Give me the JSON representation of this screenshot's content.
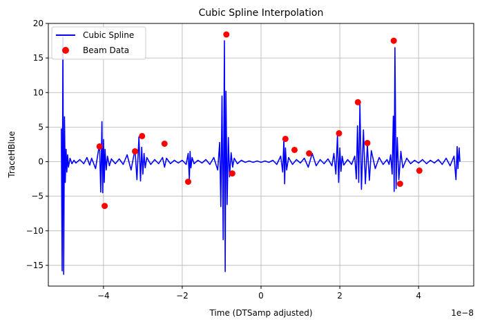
{
  "chart_data": {
    "type": "line",
    "title": "Cubic Spline Interpolation",
    "xlabel": "Time (DTSamp adjusted)",
    "ylabel": "TraceHBlue",
    "x_offset_label": "1e−8",
    "xlim": [
      -5.4,
      5.4
    ],
    "ylim": [
      -18,
      20
    ],
    "xticks": [
      -4,
      -2,
      0,
      2,
      4
    ],
    "xtick_labels": [
      "−4",
      "−2",
      "0",
      "2",
      "4"
    ],
    "yticks": [
      -15,
      -10,
      -5,
      0,
      5,
      10,
      15,
      20
    ],
    "ytick_labels": [
      "−15",
      "−10",
      "−5",
      "0",
      "5",
      "10",
      "15",
      "20"
    ],
    "grid": true,
    "legend_position": "top-left",
    "series": [
      {
        "name": "Cubic Spline",
        "kind": "line",
        "color": "#0000ff",
        "x": [
          -5.07,
          -5.05,
          -5.03,
          -5.01,
          -4.99,
          -4.97,
          -4.95,
          -4.93,
          -4.91,
          -4.89,
          -4.85,
          -4.8,
          -4.75,
          -4.7,
          -4.6,
          -4.5,
          -4.42,
          -4.35,
          -4.3,
          -4.2,
          -4.1,
          -4.07,
          -4.04,
          -4.02,
          -4.0,
          -3.98,
          -3.96,
          -3.93,
          -3.9,
          -3.85,
          -3.8,
          -3.7,
          -3.6,
          -3.5,
          -3.4,
          -3.3,
          -3.2,
          -3.15,
          -3.1,
          -3.06,
          -3.03,
          -3.0,
          -2.97,
          -2.94,
          -2.9,
          -2.8,
          -2.7,
          -2.6,
          -2.5,
          -2.45,
          -2.4,
          -2.3,
          -2.2,
          -2.1,
          -2.0,
          -1.9,
          -1.85,
          -1.82,
          -1.8,
          -1.78,
          -1.75,
          -1.7,
          -1.6,
          -1.5,
          -1.4,
          -1.3,
          -1.2,
          -1.1,
          -1.05,
          -1.02,
          -0.99,
          -0.96,
          -0.93,
          -0.91,
          -0.89,
          -0.86,
          -0.83,
          -0.8,
          -0.76,
          -0.72,
          -0.68,
          -0.6,
          -0.5,
          -0.4,
          -0.3,
          -0.2,
          -0.1,
          0.0,
          0.1,
          0.2,
          0.3,
          0.4,
          0.5,
          0.55,
          0.58,
          0.6,
          0.62,
          0.65,
          0.7,
          0.8,
          0.9,
          1.0,
          1.1,
          1.2,
          1.3,
          1.4,
          1.5,
          1.6,
          1.7,
          1.8,
          1.85,
          1.9,
          1.94,
          1.97,
          2.0,
          2.03,
          2.06,
          2.1,
          2.2,
          2.3,
          2.38,
          2.42,
          2.45,
          2.48,
          2.51,
          2.55,
          2.6,
          2.65,
          2.7,
          2.75,
          2.8,
          2.9,
          3.0,
          3.1,
          3.2,
          3.25,
          3.29,
          3.33,
          3.36,
          3.38,
          3.4,
          3.43,
          3.46,
          3.5,
          3.55,
          3.6,
          3.7,
          3.8,
          3.9,
          4.0,
          4.1,
          4.2,
          4.3,
          4.4,
          4.5,
          4.6,
          4.7,
          4.8,
          4.9,
          4.95,
          4.98,
          5.0,
          5.03,
          5.05
        ],
        "y": [
          4.8,
          -15.8,
          18.0,
          -16.3,
          6.5,
          -3.0,
          1.8,
          -1.5,
          1.0,
          -0.8,
          0.5,
          -0.3,
          0.2,
          -0.2,
          0.3,
          -0.3,
          0.6,
          -0.5,
          0.5,
          -1.0,
          2.6,
          -4.4,
          5.8,
          -4.5,
          3.2,
          -3.0,
          1.8,
          -1.2,
          0.8,
          -0.6,
          0.4,
          -0.3,
          0.4,
          -0.4,
          1.0,
          -1.2,
          1.8,
          -2.6,
          3.6,
          -2.8,
          2.1,
          -1.8,
          1.2,
          -0.9,
          0.6,
          -0.4,
          0.3,
          -0.3,
          0.6,
          -0.8,
          0.5,
          -0.3,
          0.2,
          -0.2,
          0.2,
          -0.4,
          1.2,
          -2.6,
          1.5,
          -0.9,
          0.6,
          -0.3,
          0.2,
          -0.2,
          0.3,
          -0.4,
          0.6,
          -1.2,
          2.8,
          -6.5,
          9.5,
          -11.3,
          17.5,
          -15.9,
          10.2,
          -6.2,
          3.5,
          -2.2,
          1.3,
          -0.8,
          0.5,
          -0.3,
          0.2,
          -0.1,
          0.1,
          -0.1,
          0.1,
          -0.1,
          0.1,
          -0.1,
          0.2,
          -0.4,
          0.8,
          -1.5,
          3.3,
          -3.2,
          2.0,
          -1.2,
          0.6,
          -0.4,
          0.3,
          -0.2,
          0.5,
          -0.8,
          1.2,
          -0.6,
          0.3,
          -0.3,
          0.4,
          -0.6,
          1.2,
          -1.8,
          3.9,
          -3.0,
          2.0,
          -1.4,
          0.8,
          -0.5,
          0.3,
          -0.4,
          0.8,
          -2.5,
          5.2,
          -3.0,
          8.3,
          -4.0,
          4.6,
          -3.2,
          2.4,
          -2.7,
          1.6,
          -1.0,
          0.6,
          -0.4,
          0.3,
          -0.4,
          1.0,
          -1.8,
          6.6,
          -4.3,
          16.5,
          -3.9,
          3.5,
          -2.6,
          1.5,
          -0.9,
          0.5,
          -0.3,
          0.2,
          -0.2,
          0.3,
          -0.3,
          0.2,
          -0.2,
          0.3,
          -0.4,
          0.5,
          -0.6,
          0.8,
          -2.6,
          2.2,
          -1.0,
          2.0,
          0.0
        ]
      },
      {
        "name": "Beam Data",
        "kind": "scatter",
        "color": "#ff0000",
        "x": [
          -4.1,
          -3.97,
          -3.2,
          -3.02,
          -2.45,
          -1.85,
          -0.88,
          -0.73,
          0.62,
          0.85,
          1.22,
          1.98,
          2.46,
          2.7,
          3.37,
          3.53,
          4.02
        ],
        "y": [
          2.2,
          -6.4,
          1.5,
          3.7,
          2.6,
          -2.9,
          18.4,
          -1.7,
          3.3,
          1.7,
          1.2,
          4.1,
          8.6,
          2.7,
          17.5,
          -3.2,
          -1.3
        ]
      }
    ]
  }
}
